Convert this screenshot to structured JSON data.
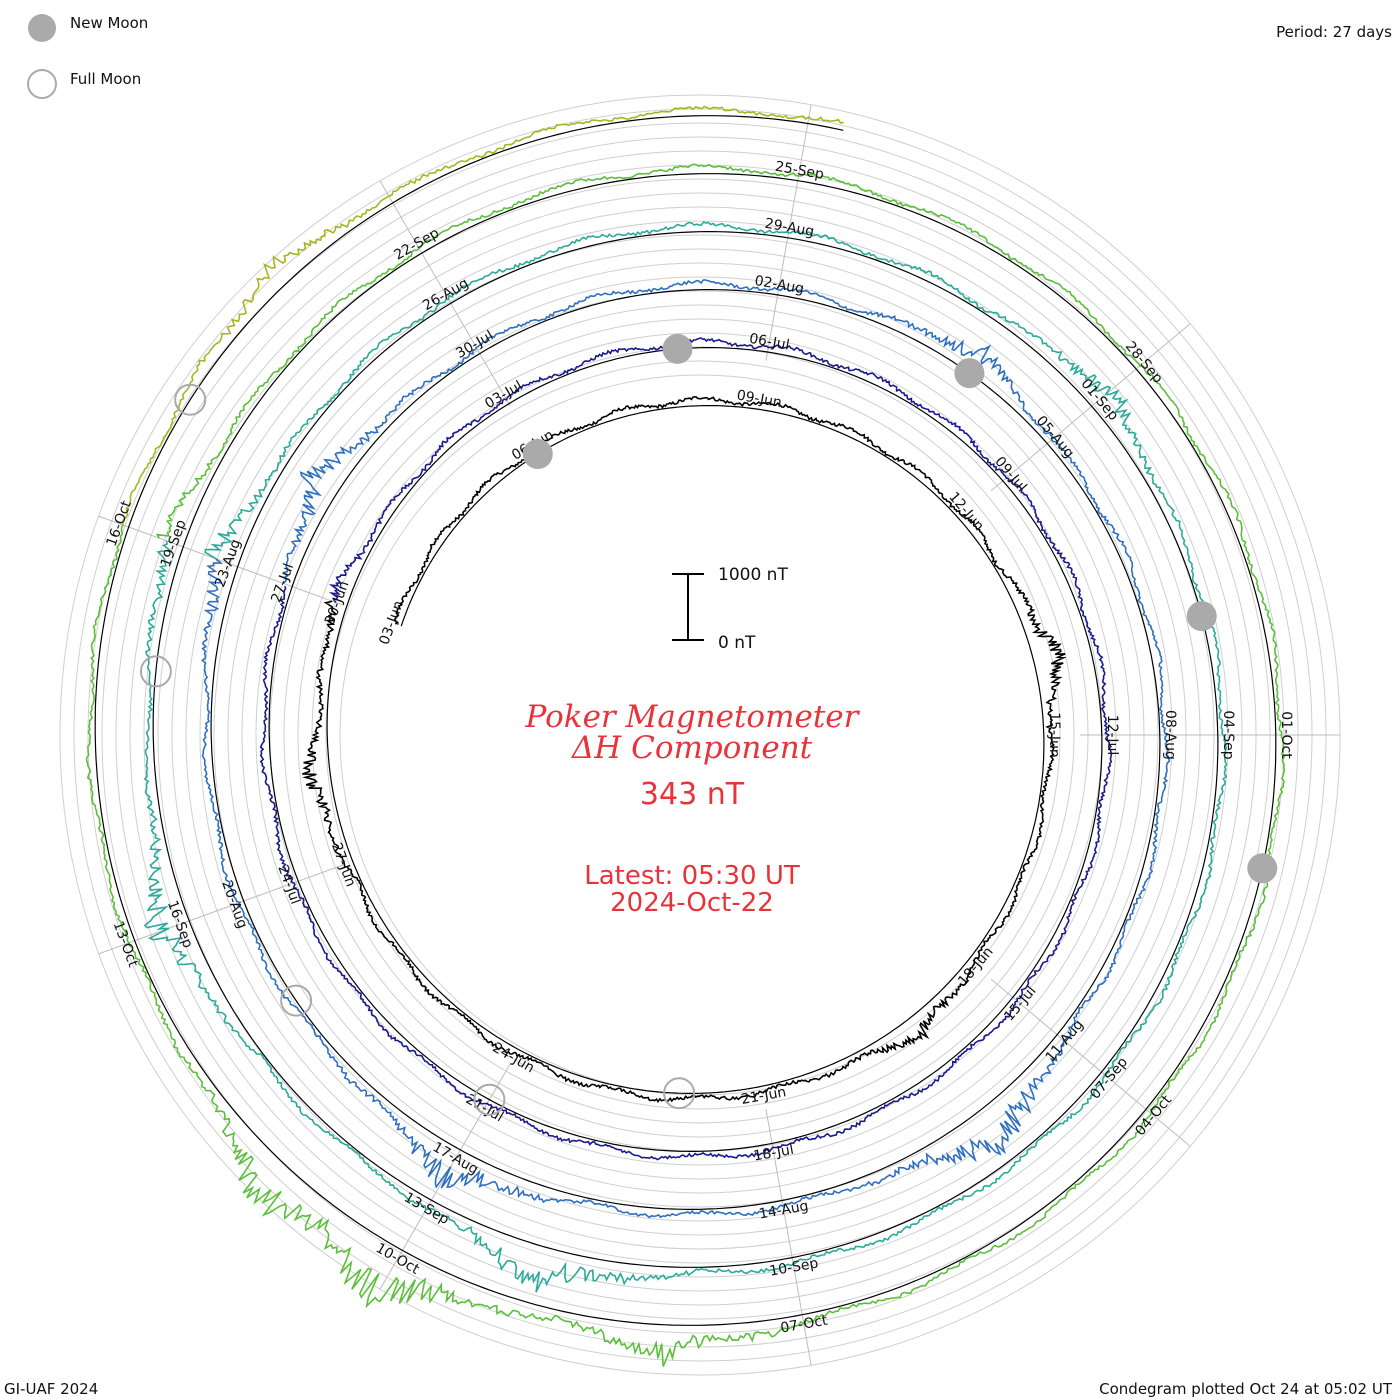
{
  "legend": {
    "new_moon_label": "New Moon",
    "full_moon_label": "Full Moon",
    "new_moon_color": "#aaaaaa",
    "full_moon_color": "#aaaaaa"
  },
  "period_label": "Period: 27 days",
  "footer": {
    "left": "GI-UAF 2024",
    "right": "Condegram plotted Oct 24 at 05:02 UT"
  },
  "center": {
    "title_line1": "Poker Magnetometer",
    "title_line2": "ΔH Component",
    "value": "343 nT",
    "latest_line1": "Latest: 05:30 UT",
    "latest_line2": "2024-Oct-22",
    "title_color": "#e8333a"
  },
  "scale_bar": {
    "top_label": "1000 nT",
    "bottom_label": "0 nT",
    "top_value": 1000,
    "bottom_value": 0
  },
  "chart_data": {
    "type": "line",
    "subtype": "condegram (spiral time plot)",
    "period_days": 27,
    "start_date": "2024-06-03",
    "end_date": "2024-10-22",
    "units": "nT",
    "value_range": [
      0,
      1000
    ],
    "date_labels": [
      "03-Jun",
      "06-Jun",
      "09-Jun",
      "12-Jun",
      "15-Jun",
      "18-Jun",
      "21-Jun",
      "24-Jun",
      "27-Jun",
      "30-Jun",
      "03-Jul",
      "06-Jul",
      "09-Jul",
      "12-Jul",
      "15-Jul",
      "18-Jul",
      "21-Jul",
      "24-Jul",
      "27-Jul",
      "30-Jul",
      "02-Aug",
      "05-Aug",
      "08-Aug",
      "11-Aug",
      "14-Aug",
      "17-Aug",
      "20-Aug",
      "23-Aug",
      "26-Aug",
      "29-Aug",
      "01-Sep",
      "04-Sep",
      "07-Sep",
      "10-Sep",
      "13-Sep",
      "16-Sep",
      "19-Sep",
      "22-Sep",
      "25-Sep",
      "28-Sep",
      "01-Oct",
      "04-Oct",
      "07-Oct",
      "10-Oct",
      "13-Oct",
      "16-Oct"
    ],
    "new_moon_dates": [
      "2024-06-06",
      "2024-07-05",
      "2024-08-04",
      "2024-09-03",
      "2024-10-02"
    ],
    "full_moon_dates": [
      "2024-06-22",
      "2024-07-21",
      "2024-08-19",
      "2024-09-18",
      "2024-10-17"
    ],
    "series_colors": [
      "#000000",
      "#1a1a8c",
      "#2d6fc0",
      "#2aaa9a",
      "#5bbf3a",
      "#a7b520",
      "#c8861e",
      "#b8330e"
    ],
    "disturbances": [
      {
        "date": "2024-06-14",
        "value": 350
      },
      {
        "date": "2024-06-19",
        "value": 260
      },
      {
        "date": "2024-06-28",
        "value": 300
      },
      {
        "date": "2024-06-30",
        "value": 220
      },
      {
        "date": "2024-07-28",
        "value": 420
      },
      {
        "date": "2024-08-04",
        "value": 350
      },
      {
        "date": "2024-08-12",
        "value": 700
      },
      {
        "date": "2024-08-17",
        "value": 500
      },
      {
        "date": "2024-08-23",
        "value": 400
      },
      {
        "date": "2024-09-01",
        "value": 350
      },
      {
        "date": "2024-09-12",
        "value": 550
      },
      {
        "date": "2024-09-16",
        "value": 520
      },
      {
        "date": "2024-09-19",
        "value": 300
      },
      {
        "date": "2024-10-08",
        "value": 450
      },
      {
        "date": "2024-10-10",
        "value": 750
      },
      {
        "date": "2024-10-11",
        "value": 600
      },
      {
        "date": "2024-10-18",
        "value": 300
      }
    ]
  }
}
